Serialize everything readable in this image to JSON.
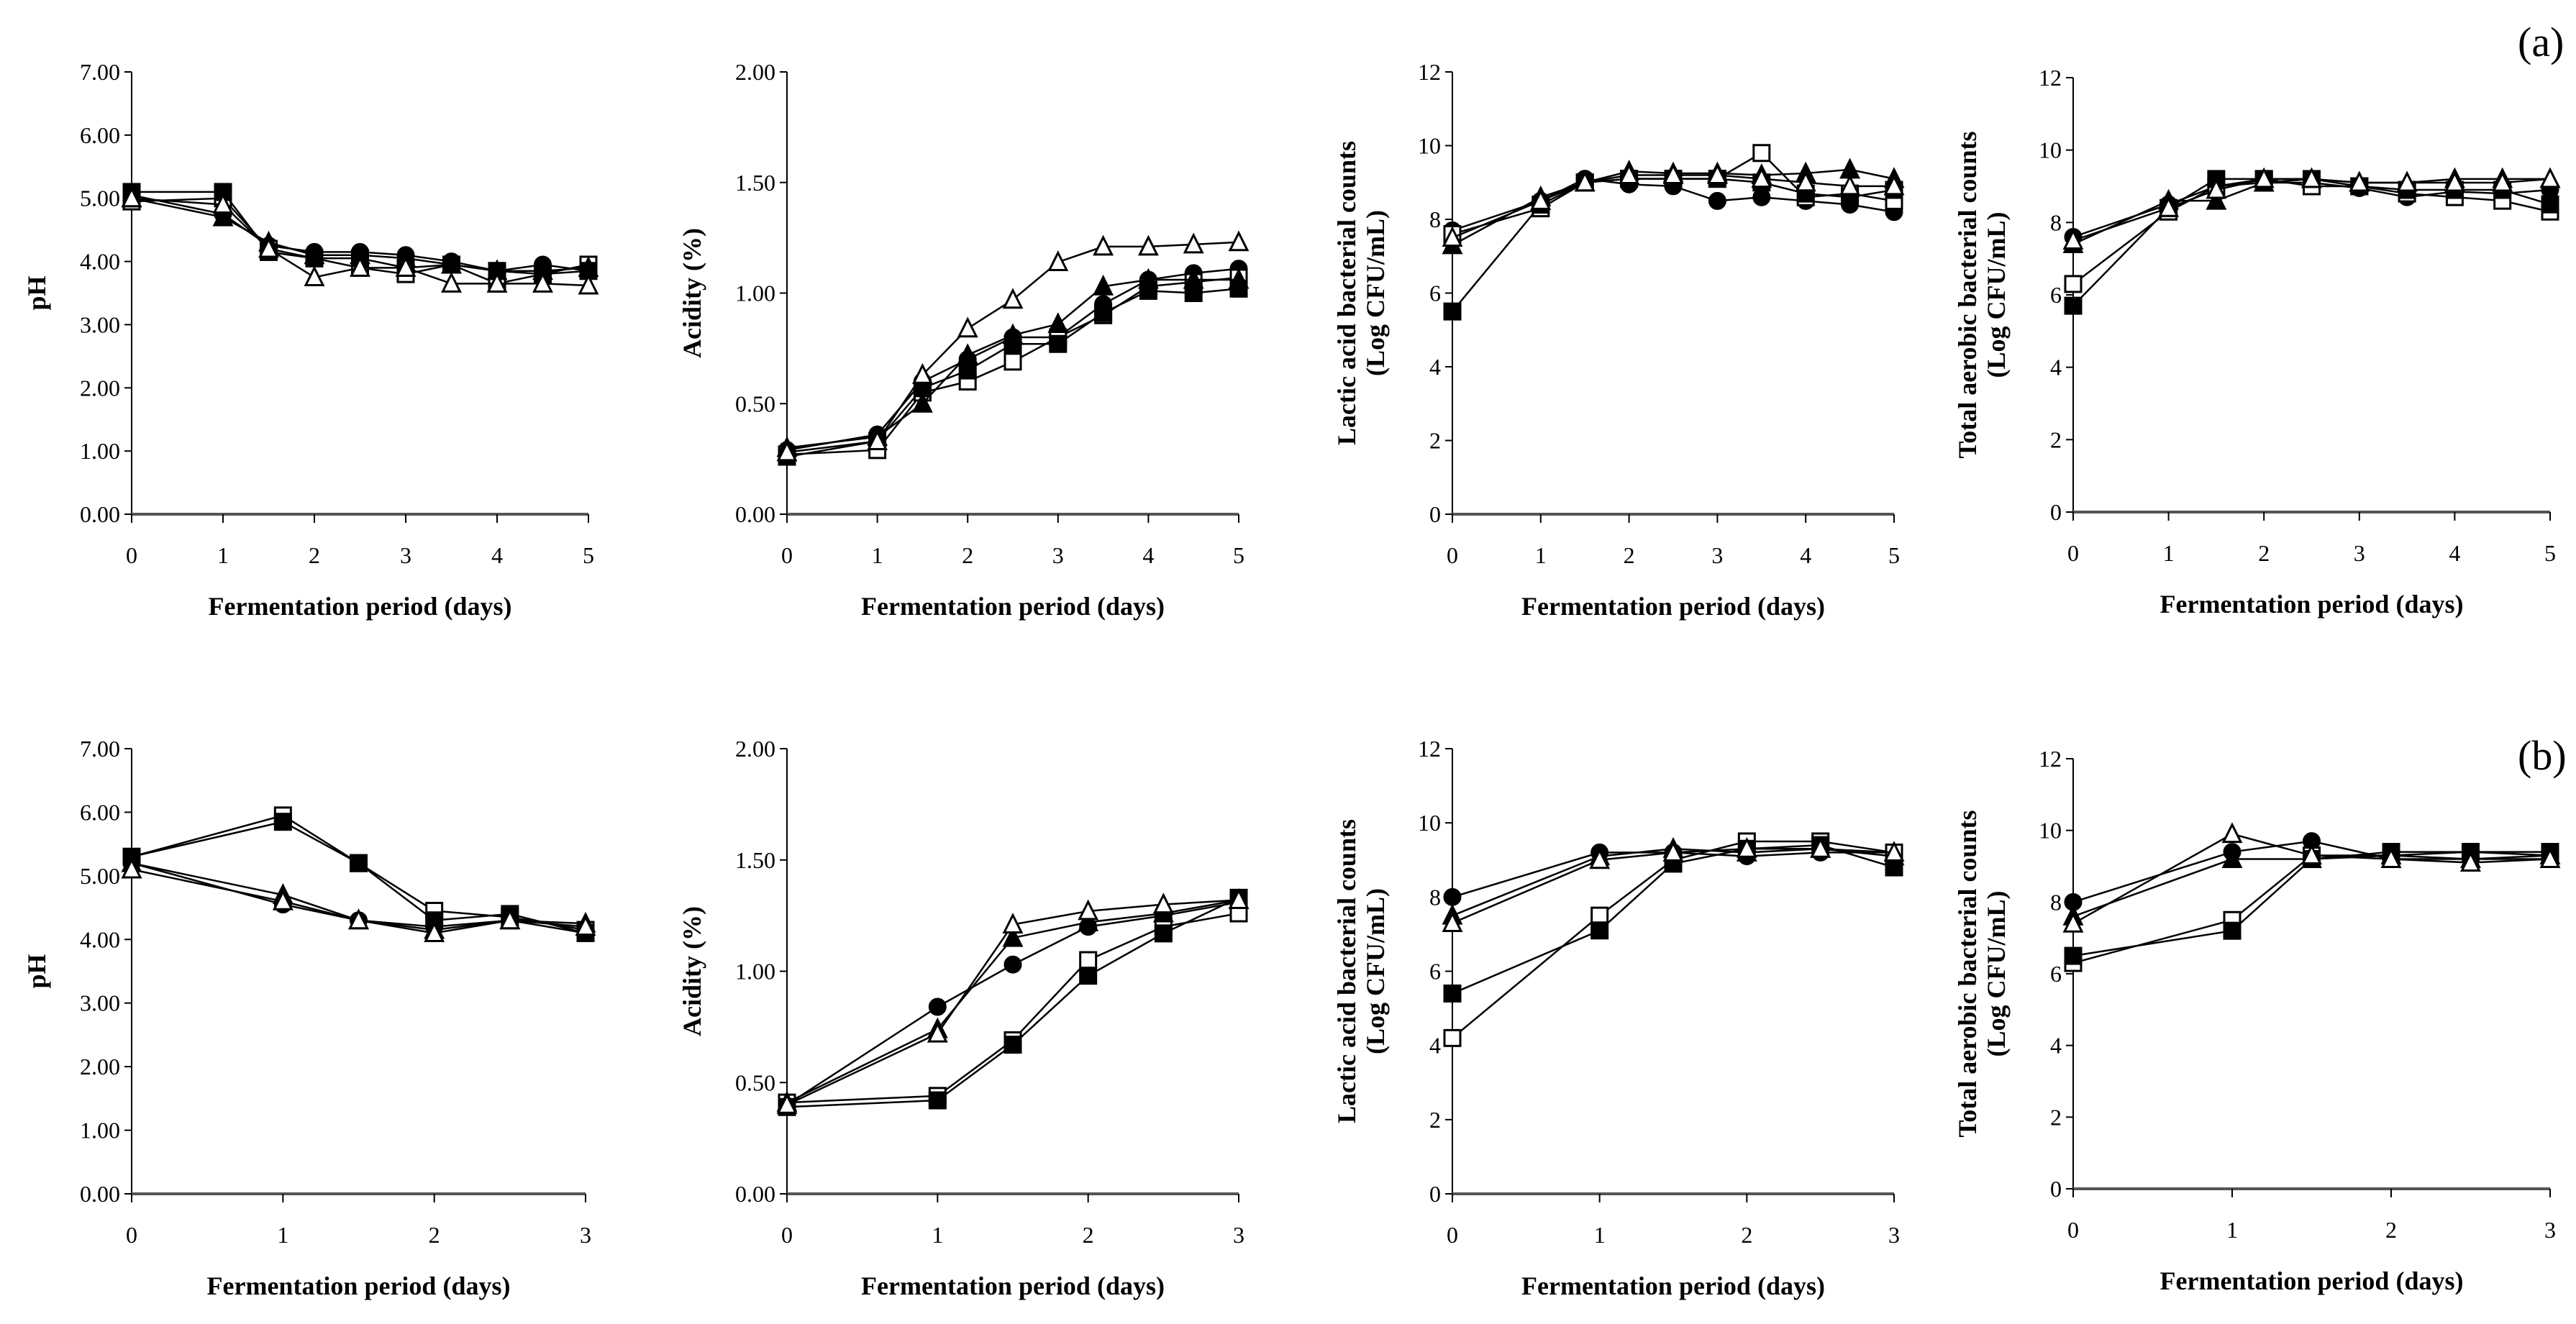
{
  "panels": {
    "a": "(a)",
    "b": "(b)"
  },
  "chart_data": [
    {
      "id": "a-ph",
      "type": "line",
      "row": "a",
      "ylabel": [
        "pH"
      ],
      "xlabel": "Fermentation period (days)",
      "ylim": [
        0,
        7
      ],
      "yticks": [
        0,
        1,
        2,
        3,
        4,
        5,
        6,
        7
      ],
      "ydec": 2,
      "xlim": [
        0,
        5
      ],
      "xticks": [
        0,
        1,
        2,
        3,
        4,
        5
      ],
      "x": [
        0,
        1,
        1.5,
        2,
        2.5,
        3,
        3.5,
        4,
        4.5,
        5
      ],
      "series": [
        {
          "marker": "filled-circle",
          "values": [
            5.05,
            4.75,
            4.25,
            4.15,
            4.15,
            4.1,
            4.0,
            3.85,
            3.95,
            3.85
          ]
        },
        {
          "marker": "open-square",
          "values": [
            4.95,
            5.0,
            4.2,
            4.05,
            3.9,
            3.8,
            3.95,
            3.65,
            3.8,
            3.95
          ]
        },
        {
          "marker": "filled-square",
          "values": [
            5.1,
            5.1,
            4.15,
            4.05,
            4.05,
            3.9,
            3.95,
            3.85,
            3.8,
            3.85
          ]
        },
        {
          "marker": "filled-triangle",
          "values": [
            5.0,
            4.7,
            4.3,
            4.1,
            4.1,
            4.05,
            3.95,
            3.85,
            3.85,
            3.9
          ]
        },
        {
          "marker": "open-triangle",
          "values": [
            5.0,
            4.9,
            4.2,
            3.75,
            3.9,
            3.9,
            3.65,
            3.65,
            3.65,
            3.62
          ]
        }
      ]
    },
    {
      "id": "a-acidity",
      "type": "line",
      "row": "a",
      "ylabel": [
        "Acidity (%)"
      ],
      "xlabel": "Fermentation period (days)",
      "ylim": [
        0,
        2
      ],
      "yticks": [
        0,
        0.5,
        1,
        1.5,
        2
      ],
      "ydec": 2,
      "xlim": [
        0,
        5
      ],
      "xticks": [
        0,
        1,
        2,
        3,
        4,
        5
      ],
      "x": [
        0,
        1,
        1.5,
        2,
        2.5,
        3,
        3.5,
        4,
        4.5,
        5
      ],
      "series": [
        {
          "marker": "filled-circle",
          "values": [
            0.29,
            0.36,
            0.6,
            0.7,
            0.8,
            0.8,
            0.95,
            1.06,
            1.09,
            1.11
          ]
        },
        {
          "marker": "open-square",
          "values": [
            0.27,
            0.29,
            0.55,
            0.6,
            0.69,
            0.8,
            0.9,
            1.03,
            1.05,
            1.07
          ]
        },
        {
          "marker": "filled-square",
          "values": [
            0.26,
            0.33,
            0.57,
            0.65,
            0.77,
            0.77,
            0.91,
            1.01,
            1.0,
            1.02
          ]
        },
        {
          "marker": "filled-triangle",
          "values": [
            0.3,
            0.35,
            0.5,
            0.72,
            0.81,
            0.86,
            1.03,
            1.06,
            1.06,
            1.06
          ]
        },
        {
          "marker": "open-triangle",
          "values": [
            0.28,
            0.33,
            0.63,
            0.84,
            0.97,
            1.14,
            1.21,
            1.21,
            1.22,
            1.23
          ]
        }
      ]
    },
    {
      "id": "a-lab",
      "type": "line",
      "row": "a",
      "ylabel": [
        "Lactic acid bacterial counts",
        "(Log CFU/mL)"
      ],
      "xlabel": "Fermentation period (days)",
      "ylim": [
        0,
        12
      ],
      "yticks": [
        0,
        2,
        4,
        6,
        8,
        10,
        12
      ],
      "ydec": 0,
      "xlim": [
        0,
        5
      ],
      "xticks": [
        0,
        1,
        2,
        3,
        4,
        5
      ],
      "x": [
        0,
        1,
        1.5,
        2,
        2.5,
        3,
        3.5,
        4,
        4.5,
        5
      ],
      "series": [
        {
          "marker": "filled-circle",
          "values": [
            7.7,
            8.5,
            9.1,
            8.95,
            8.9,
            8.5,
            8.6,
            8.5,
            8.4,
            8.2
          ]
        },
        {
          "marker": "open-square",
          "values": [
            7.6,
            8.3,
            9.0,
            9.1,
            9.1,
            9.1,
            9.8,
            8.6,
            8.7,
            8.5
          ]
        },
        {
          "marker": "filled-square",
          "values": [
            5.5,
            8.4,
            9.0,
            9.1,
            9.1,
            9.1,
            9.0,
            8.7,
            8.6,
            8.8
          ]
        },
        {
          "marker": "filled-triangle",
          "values": [
            7.3,
            8.6,
            9.0,
            9.3,
            9.25,
            9.25,
            9.2,
            9.25,
            9.35,
            9.1
          ]
        },
        {
          "marker": "open-triangle",
          "values": [
            7.5,
            8.5,
            9.0,
            9.2,
            9.2,
            9.2,
            9.1,
            9.0,
            8.9,
            8.9
          ]
        }
      ]
    },
    {
      "id": "a-tab",
      "type": "line",
      "row": "a",
      "ylabel": [
        "Total aerobic bacterial counts",
        "(Log CFU/mL)"
      ],
      "xlabel": "Fermentation period (days)",
      "ylim": [
        0,
        12
      ],
      "yticks": [
        0,
        2,
        4,
        6,
        8,
        10,
        12
      ],
      "ydec": 0,
      "xlim": [
        0,
        5
      ],
      "xticks": [
        0,
        1,
        2,
        3,
        4,
        5
      ],
      "x": [
        0,
        1,
        1.5,
        2,
        2.5,
        3,
        3.5,
        4,
        4.5,
        5
      ],
      "series": [
        {
          "marker": "filled-circle",
          "values": [
            7.6,
            8.5,
            9.0,
            9.1,
            9.1,
            8.95,
            8.7,
            8.85,
            8.8,
            8.9
          ]
        },
        {
          "marker": "open-square",
          "values": [
            6.3,
            8.3,
            9.0,
            9.2,
            9.0,
            9.0,
            8.8,
            8.7,
            8.6,
            8.3
          ]
        },
        {
          "marker": "filled-square",
          "values": [
            5.7,
            8.4,
            9.2,
            9.2,
            9.2,
            9.0,
            8.9,
            8.9,
            8.9,
            8.5
          ]
        },
        {
          "marker": "filled-triangle",
          "values": [
            7.4,
            8.6,
            8.6,
            9.1,
            9.2,
            9.1,
            9.1,
            9.2,
            9.2,
            9.2
          ]
        },
        {
          "marker": "open-triangle",
          "values": [
            7.5,
            8.4,
            8.9,
            9.2,
            9.2,
            9.1,
            9.1,
            9.1,
            9.1,
            9.2
          ]
        }
      ]
    },
    {
      "id": "b-ph",
      "type": "line",
      "row": "b",
      "ylabel": [
        "pH"
      ],
      "xlabel": "Fermentation period (days)",
      "ylim": [
        0,
        7
      ],
      "yticks": [
        0,
        1,
        2,
        3,
        4,
        5,
        6,
        7
      ],
      "ydec": 2,
      "xlim": [
        0,
        3
      ],
      "xticks": [
        0,
        1,
        2,
        3
      ],
      "x": [
        0,
        1,
        1.5,
        2,
        2.5,
        3
      ],
      "series": [
        {
          "marker": "filled-circle",
          "values": [
            5.2,
            4.55,
            4.3,
            4.2,
            4.3,
            4.1
          ]
        },
        {
          "marker": "open-square",
          "values": [
            5.3,
            5.95,
            5.2,
            4.45,
            4.35,
            4.15
          ]
        },
        {
          "marker": "filled-square",
          "values": [
            5.3,
            5.85,
            5.2,
            4.3,
            4.4,
            4.1
          ]
        },
        {
          "marker": "filled-triangle",
          "values": [
            5.2,
            4.7,
            4.3,
            4.15,
            4.3,
            4.25
          ]
        },
        {
          "marker": "open-triangle",
          "values": [
            5.1,
            4.6,
            4.3,
            4.1,
            4.3,
            4.2
          ]
        }
      ]
    },
    {
      "id": "b-acidity",
      "type": "line",
      "row": "b",
      "ylabel": [
        "Acidity (%)"
      ],
      "xlabel": "Fermentation period (days)",
      "ylim": [
        0,
        2
      ],
      "yticks": [
        0,
        0.5,
        1,
        1.5,
        2
      ],
      "ydec": 2,
      "xlim": [
        0,
        3
      ],
      "xticks": [
        0,
        1,
        2,
        3
      ],
      "x": [
        0,
        1,
        1.5,
        2,
        2.5,
        3
      ],
      "series": [
        {
          "marker": "filled-circle",
          "values": [
            0.4,
            0.84,
            1.03,
            1.2,
            1.25,
            1.31
          ]
        },
        {
          "marker": "open-square",
          "values": [
            0.41,
            0.44,
            0.69,
            1.05,
            1.2,
            1.26
          ]
        },
        {
          "marker": "filled-square",
          "values": [
            0.39,
            0.42,
            0.67,
            0.98,
            1.17,
            1.33
          ]
        },
        {
          "marker": "filled-triangle",
          "values": [
            0.41,
            0.74,
            1.15,
            1.22,
            1.26,
            1.32
          ]
        },
        {
          "marker": "open-triangle",
          "values": [
            0.4,
            0.72,
            1.21,
            1.27,
            1.3,
            1.32
          ]
        }
      ]
    },
    {
      "id": "b-lab",
      "type": "line",
      "row": "b",
      "ylabel": [
        "Lactic acid bacterial counts",
        "(Log CFU/mL)"
      ],
      "xlabel": "Fermentation period (days)",
      "ylim": [
        0,
        12
      ],
      "yticks": [
        0,
        2,
        4,
        6,
        8,
        10,
        12
      ],
      "ydec": 0,
      "xlim": [
        0,
        3
      ],
      "xticks": [
        0,
        1,
        2,
        3
      ],
      "x": [
        0,
        1,
        1.5,
        2,
        2.5,
        3
      ],
      "series": [
        {
          "marker": "filled-circle",
          "values": [
            8.0,
            9.2,
            9.2,
            9.1,
            9.2,
            9.2
          ]
        },
        {
          "marker": "open-square",
          "values": [
            4.2,
            7.5,
            9.0,
            9.5,
            9.5,
            9.2
          ]
        },
        {
          "marker": "filled-square",
          "values": [
            5.4,
            7.1,
            8.9,
            9.3,
            9.4,
            8.8
          ]
        },
        {
          "marker": "filled-triangle",
          "values": [
            7.5,
            9.1,
            9.3,
            9.2,
            9.3,
            9.1
          ]
        },
        {
          "marker": "open-triangle",
          "values": [
            7.3,
            9.0,
            9.2,
            9.3,
            9.3,
            9.2
          ]
        }
      ]
    },
    {
      "id": "b-tab",
      "type": "line",
      "row": "b",
      "ylabel": [
        "Total aerobic bacterial counts",
        "(Log CFU/mL)"
      ],
      "xlabel": "Fermentation period (days)",
      "ylim": [
        0,
        12
      ],
      "yticks": [
        0,
        2,
        4,
        6,
        8,
        10,
        12
      ],
      "ydec": 0,
      "xlim": [
        0,
        3
      ],
      "xticks": [
        0,
        1,
        2,
        3
      ],
      "x": [
        0,
        1,
        1.5,
        2,
        2.5,
        3
      ],
      "series": [
        {
          "marker": "filled-circle",
          "values": [
            8.0,
            9.4,
            9.7,
            9.2,
            9.2,
            9.2
          ]
        },
        {
          "marker": "open-square",
          "values": [
            6.3,
            7.5,
            9.3,
            9.3,
            9.4,
            9.3
          ]
        },
        {
          "marker": "filled-square",
          "values": [
            6.5,
            7.2,
            9.2,
            9.4,
            9.4,
            9.4
          ]
        },
        {
          "marker": "filled-triangle",
          "values": [
            7.6,
            9.2,
            9.2,
            9.3,
            9.2,
            9.3
          ]
        },
        {
          "marker": "open-triangle",
          "values": [
            7.4,
            9.9,
            9.3,
            9.2,
            9.1,
            9.2
          ]
        }
      ]
    }
  ]
}
